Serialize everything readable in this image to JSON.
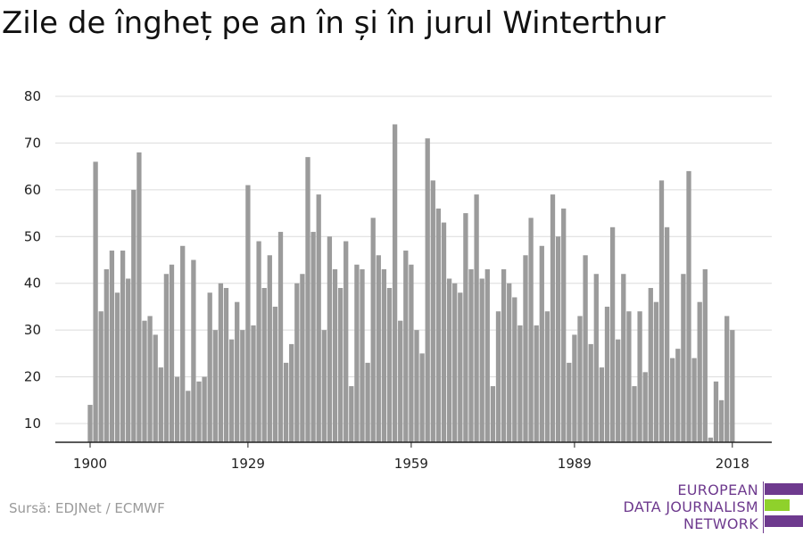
{
  "title": "Zile de îngheț pe an în și în jurul Winterthur",
  "source": "Sursă: EDJNet / ECMWF",
  "logo": {
    "lines": [
      "EUROPEAN",
      "DATA JOURNALISM",
      "NETWORK"
    ],
    "colors": {
      "purple": "#6e3a8e",
      "green": "#8fd12b"
    }
  },
  "chart_data": {
    "type": "bar",
    "title": "Zile de îngheț pe an în și în jurul Winterthur",
    "xlabel": "",
    "ylabel": "",
    "bar_color": "#9b9b9b",
    "grid": true,
    "ylim": [
      6,
      80
    ],
    "y_ticks": [
      10,
      20,
      30,
      40,
      50,
      60,
      70,
      80
    ],
    "x_tick_labels": [
      "1900",
      "1929",
      "1959",
      "1989",
      "2018"
    ],
    "x_start": 1900,
    "x_end": 2018,
    "values": [
      14,
      66,
      34,
      43,
      47,
      38,
      47,
      41,
      60,
      68,
      32,
      33,
      29,
      22,
      42,
      44,
      20,
      48,
      17,
      45,
      19,
      20,
      38,
      30,
      40,
      39,
      28,
      36,
      30,
      61,
      31,
      49,
      39,
      46,
      35,
      51,
      23,
      27,
      40,
      42,
      67,
      51,
      59,
      30,
      50,
      43,
      39,
      49,
      18,
      44,
      43,
      23,
      54,
      46,
      43,
      39,
      74,
      32,
      47,
      44,
      30,
      25,
      71,
      62,
      56,
      53,
      41,
      40,
      38,
      55,
      43,
      59,
      41,
      43,
      18,
      34,
      43,
      40,
      37,
      31,
      46,
      54,
      31,
      48,
      34,
      59,
      50,
      56,
      23,
      29,
      33,
      46,
      27,
      42,
      22,
      35,
      52,
      28,
      42,
      34,
      18,
      34,
      21,
      39,
      36,
      62,
      52,
      24,
      26,
      42,
      64,
      24,
      36,
      43,
      7,
      19,
      15,
      33,
      30
    ]
  }
}
